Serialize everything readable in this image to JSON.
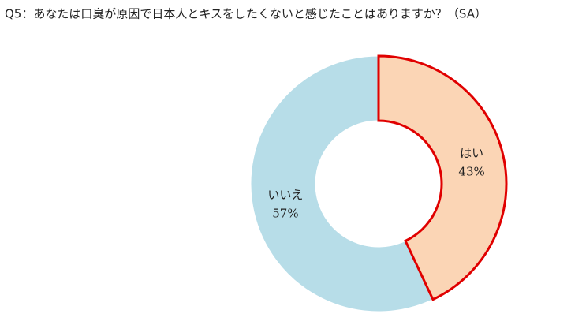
{
  "chart_data": {
    "type": "donut",
    "title": "Q5：あなたは口臭が原因で日本人とキスをしたくないと感じたことはありますか？（SA）",
    "categories": [
      "はい",
      "いいえ"
    ],
    "values": [
      43,
      57
    ],
    "value_labels": [
      "43%",
      "57%"
    ],
    "colors": [
      "#fbd5b5",
      "#b7dde8"
    ],
    "edge_colors": [
      "#e00000",
      null
    ]
  }
}
